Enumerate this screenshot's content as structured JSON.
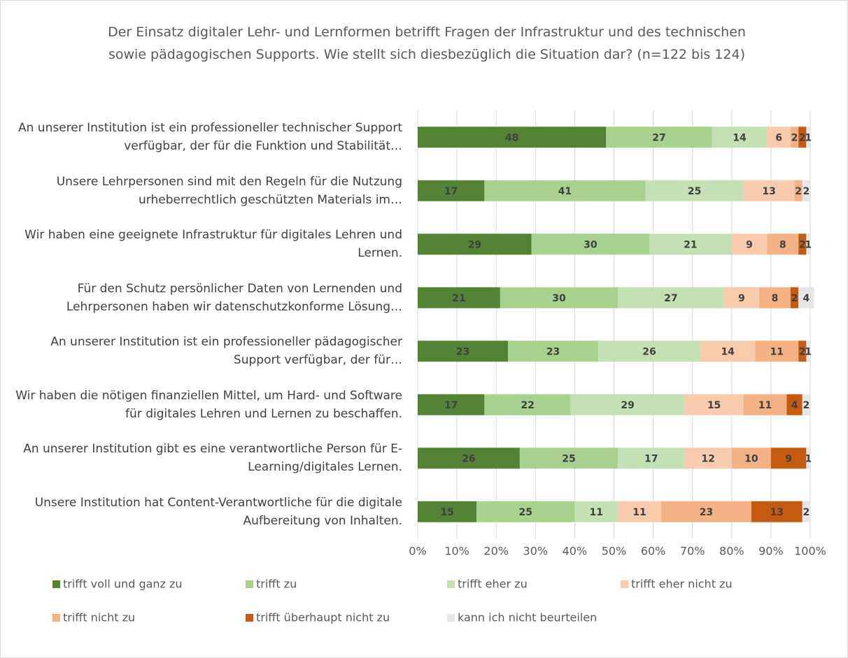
{
  "chart_data": {
    "type": "stacked_bar_horizontal",
    "title": "Der Einsatz digitaler Lehr- und Lernformen betrifft Fragen der Infrastruktur und des technischen sowie pädagogischen Supports. Wie stellt sich diesbezüglich die Situation dar? (n=122 bis 124)",
    "categories": [
      "An unserer Institution ist ein professioneller technischer Support verfügbar, der für die Funktion und Stabilität…",
      "Unsere Lehrpersonen sind mit den Regeln für die Nutzung urheberrechtlich geschützten Materials im…",
      "Wir haben eine geeignete Infrastruktur für digitales Lehren und Lernen.",
      "Für den Schutz persönlicher Daten von Lernenden und Lehrpersonen haben wir datenschutzkonforme Lösung…",
      "An unserer Institution ist ein professioneller pädagogischer Support verfügbar, der für…",
      "Wir haben die nötigen finanziellen Mittel, um Hard- und Software für digitales Lehren und Lernen zu beschaffen.",
      "An unserer Institution gibt es eine verantwortliche Person für E-Learning/digitales Lernen.",
      "Unsere Institution hat Content-Verantwortliche für die digitale Aufbereitung von Inhalten."
    ],
    "series": [
      {
        "name": "trifft voll und ganz zu",
        "color": "#548235",
        "values": [
          48,
          17,
          29,
          21,
          23,
          17,
          26,
          15
        ]
      },
      {
        "name": "trifft zu",
        "color": "#a9d18e",
        "values": [
          27,
          41,
          30,
          30,
          23,
          22,
          25,
          25
        ]
      },
      {
        "name": "trifft eher zu",
        "color": "#c5e0b4",
        "values": [
          14,
          25,
          21,
          27,
          26,
          29,
          17,
          11
        ]
      },
      {
        "name": "trifft eher nicht zu",
        "color": "#f8cbad",
        "values": [
          6,
          13,
          9,
          9,
          14,
          15,
          12,
          11
        ]
      },
      {
        "name": "trifft nicht zu",
        "color": "#f4b183",
        "values": [
          2,
          2,
          8,
          8,
          11,
          11,
          10,
          23
        ]
      },
      {
        "name": "trifft überhaupt nicht zu",
        "color": "#c55a11",
        "values": [
          2,
          null,
          2,
          2,
          2,
          4,
          9,
          13
        ]
      },
      {
        "name": "kann ich nicht beurteilen",
        "color": "#e7e6e6",
        "values": [
          1,
          2,
          1,
          4,
          1,
          2,
          1,
          2
        ]
      }
    ],
    "xlim": [
      0,
      100
    ],
    "xticks": [
      {
        "value": 0,
        "label": "0%"
      },
      {
        "value": 10,
        "label": "10%"
      },
      {
        "value": 20,
        "label": "20%"
      },
      {
        "value": 30,
        "label": "30%"
      },
      {
        "value": 40,
        "label": "40%"
      },
      {
        "value": 50,
        "label": "50%"
      },
      {
        "value": 60,
        "label": "60%"
      },
      {
        "value": 70,
        "label": "70%"
      },
      {
        "value": 80,
        "label": "80%"
      },
      {
        "value": 90,
        "label": "90%"
      },
      {
        "value": 100,
        "label": "100%"
      }
    ],
    "grid": true,
    "legend": "bottom"
  }
}
